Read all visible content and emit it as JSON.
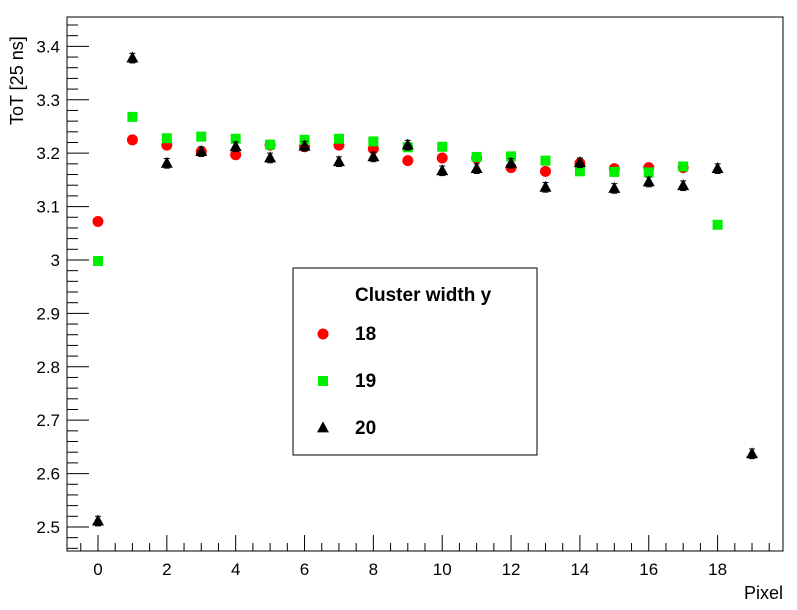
{
  "chart_data": {
    "type": "scatter",
    "title": "",
    "xlabel": "Pixel",
    "ylabel": "ToT [25 ns]",
    "xlim": [
      -0.9,
      19.9
    ],
    "ylim": [
      2.455,
      3.455
    ],
    "x_major_ticks": [
      0,
      2,
      4,
      6,
      8,
      10,
      12,
      14,
      16,
      18
    ],
    "y_major_ticks": [
      2.5,
      2.6,
      2.7,
      2.8,
      2.9,
      3,
      3.1,
      3.2,
      3.3,
      3.4
    ],
    "x_tick_labels": [
      "0",
      "2",
      "4",
      "6",
      "8",
      "10",
      "12",
      "14",
      "16",
      "18"
    ],
    "y_tick_labels": [
      "2.5",
      "2.6",
      "2.7",
      "2.8",
      "2.9",
      "3",
      "3.1",
      "3.2",
      "3.3",
      "3.4"
    ],
    "grid": false,
    "legend": {
      "title": "Cluster width y",
      "placement": "center"
    },
    "series": [
      {
        "name": "18",
        "marker": "circle",
        "color": "#ff0000",
        "x": [
          0,
          1,
          2,
          3,
          4,
          5,
          6,
          7,
          8,
          9,
          10,
          11,
          12,
          13,
          14,
          15,
          16,
          17
        ],
        "y": [
          3.072,
          3.225,
          3.215,
          3.203,
          3.197,
          3.215,
          3.212,
          3.215,
          3.208,
          3.186,
          3.191,
          3.191,
          3.173,
          3.166,
          3.181,
          3.171,
          3.173,
          3.173
        ],
        "err": [
          0.005,
          0.005,
          0.005,
          0.005,
          0.005,
          0.005,
          0.005,
          0.005,
          0.005,
          0.005,
          0.005,
          0.005,
          0.005,
          0.005,
          0.005,
          0.005,
          0.005,
          0.005
        ]
      },
      {
        "name": "19",
        "marker": "square",
        "color": "#00ee00",
        "x": [
          0,
          1,
          2,
          3,
          4,
          5,
          6,
          7,
          8,
          9,
          10,
          11,
          12,
          13,
          14,
          15,
          16,
          17,
          18
        ],
        "y": [
          2.998,
          3.268,
          3.228,
          3.231,
          3.227,
          3.216,
          3.225,
          3.227,
          3.222,
          3.211,
          3.212,
          3.193,
          3.194,
          3.186,
          3.166,
          3.165,
          3.164,
          3.175,
          3.066
        ],
        "err": [
          0.004,
          0.004,
          0.004,
          0.004,
          0.004,
          0.004,
          0.004,
          0.004,
          0.004,
          0.004,
          0.004,
          0.004,
          0.004,
          0.004,
          0.004,
          0.004,
          0.004,
          0.004,
          0.004
        ]
      },
      {
        "name": "20",
        "marker": "triangle",
        "color": "#000000",
        "x": [
          0,
          1,
          2,
          3,
          4,
          5,
          6,
          7,
          8,
          9,
          10,
          11,
          12,
          13,
          14,
          15,
          16,
          17,
          18,
          19
        ],
        "y": [
          2.511,
          3.378,
          3.181,
          3.203,
          3.212,
          3.191,
          3.213,
          3.184,
          3.193,
          3.215,
          3.167,
          3.171,
          3.181,
          3.136,
          3.182,
          3.134,
          3.146,
          3.139,
          3.171,
          2.637
        ],
        "err": [
          0.009,
          0.009,
          0.009,
          0.009,
          0.009,
          0.009,
          0.009,
          0.009,
          0.009,
          0.009,
          0.009,
          0.009,
          0.009,
          0.009,
          0.009,
          0.009,
          0.009,
          0.009,
          0.009,
          0.009
        ]
      }
    ]
  }
}
